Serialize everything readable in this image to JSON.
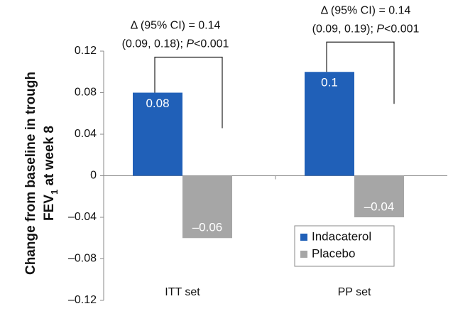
{
  "chart_data": {
    "type": "bar",
    "y_label": {
      "line1": "Change from baseline in trough",
      "line2_main": "FEV",
      "line2_sub": "1",
      "line2_rest": " at week 8"
    },
    "categories": [
      "ITT set",
      "PP set"
    ],
    "series": [
      {
        "name": "Indacaterol",
        "color": "#2060b8",
        "values": [
          0.08,
          0.1
        ]
      },
      {
        "name": "Placebo",
        "color": "#a6a6a6",
        "values": [
          -0.06,
          -0.04
        ],
        "value_labels": [
          "–0.06",
          "–0.04"
        ]
      }
    ],
    "ylim": [
      -0.12,
      0.12
    ],
    "yticks": [
      {
        "value": -0.12,
        "label": "–0.12"
      },
      {
        "value": -0.08,
        "label": "–0.08"
      },
      {
        "value": -0.04,
        "label": "–0.04"
      },
      0,
      0.04,
      0.08,
      0.12
    ],
    "legend": "lower-right",
    "annotations": [
      {
        "line1": "Δ (95% CI) = 0.14",
        "line2_pre": "(0.09, 0.18); ",
        "line2_italic": "P",
        "line2_post": "<0.001"
      },
      {
        "line1": "Δ (95% CI) = 0.14",
        "line2_pre": "(0.09, 0.19); ",
        "line2_italic": "P",
        "line2_post": "<0.001"
      }
    ]
  }
}
